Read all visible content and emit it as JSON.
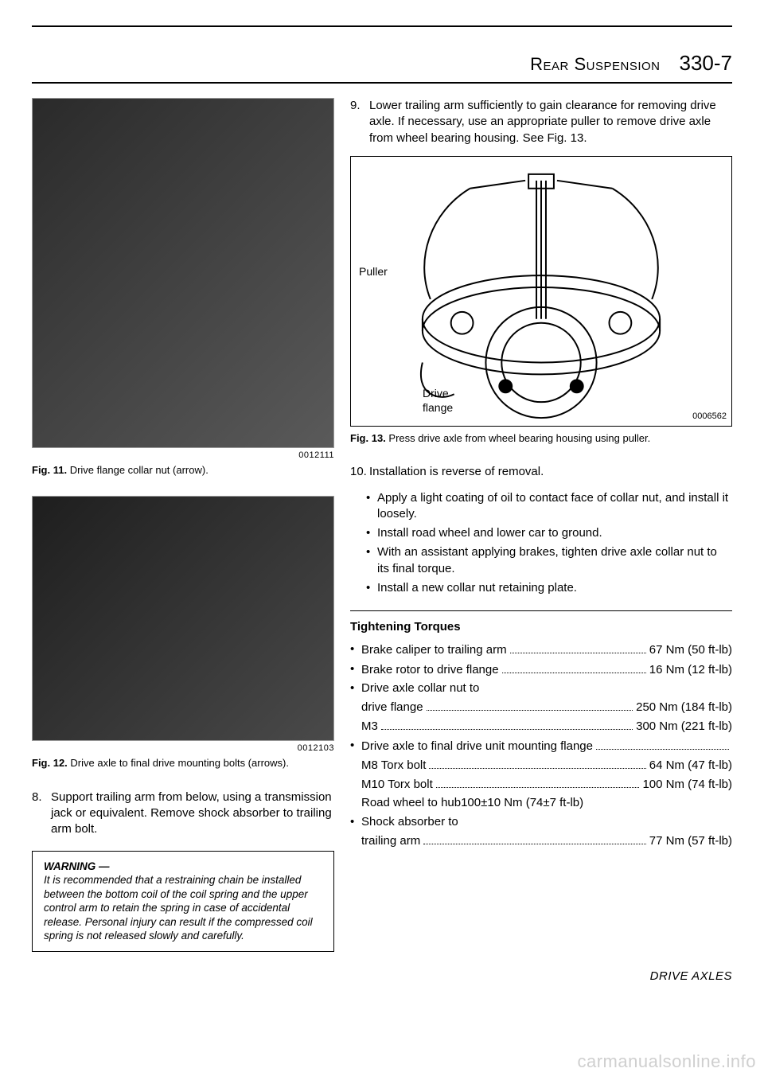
{
  "header": {
    "section_title": "Rear Suspension",
    "page_number": "330-7"
  },
  "left": {
    "fig11": {
      "id": "0012111",
      "caption_prefix": "Fig. 11.",
      "caption_text": " Drive flange collar nut (arrow)."
    },
    "fig12": {
      "id": "0012103",
      "caption_prefix": "Fig. 12.",
      "caption_text": " Drive axle to final drive mounting bolts (arrows)."
    },
    "step8": {
      "num": "8.",
      "text": "Support trailing arm from below, using a transmission jack or equivalent. Remove shock absorber to trailing arm bolt."
    },
    "warning": {
      "title": "WARNING —",
      "text": "It is recommended that a restraining chain be installed between the bottom coil of the coil spring and the upper control arm to retain the spring in case of accidental release. Personal injury can result if the compressed coil spring is not released slowly and carefully."
    }
  },
  "right": {
    "step9": {
      "num": "9.",
      "text": "Lower trailing arm sufficiently to gain clearance for removing drive axle. If necessary, use an appropriate puller to remove drive axle from wheel bearing housing. See Fig. 13."
    },
    "diagram": {
      "label_puller": "Puller",
      "label_drive": "Drive",
      "label_flange": "flange",
      "id": "0006562"
    },
    "fig13": {
      "caption_prefix": "Fig. 13.",
      "caption_text": " Press drive axle from wheel bearing housing using puller."
    },
    "step10": {
      "num": "10.",
      "text": "Installation is reverse of removal."
    },
    "bullets": [
      "Apply a light coating of oil to contact face of collar nut, and install it loosely.",
      "Install road wheel and lower car to ground.",
      "With an assistant applying brakes, tighten drive axle collar nut to its final torque.",
      "Install a new collar nut retaining plate."
    ],
    "torques": {
      "title": "Tightening Torques",
      "lines": [
        {
          "type": "dot",
          "label": "Brake caliper to trailing arm",
          "value": "67 Nm (50 ft-lb)"
        },
        {
          "type": "dot",
          "label": "Brake rotor to drive flange",
          "value": "16 Nm (12 ft-lb)"
        },
        {
          "type": "dot_only",
          "label": "Drive axle collar nut to"
        },
        {
          "type": "sub",
          "label": "drive flange",
          "value": "250 Nm (184 ft-lb)"
        },
        {
          "type": "sub",
          "label": "M3",
          "value": "300 Nm (221 ft-lb)"
        },
        {
          "type": "dot_trail",
          "label": "Drive axle to final drive unit mounting flange"
        },
        {
          "type": "sub",
          "label": "M8 Torx bolt",
          "value": "64 Nm (47 ft-lb)"
        },
        {
          "type": "sub",
          "label": "M10 Torx bolt",
          "value": "100 Nm (74 ft-lb)"
        },
        {
          "type": "sub_plain",
          "label": "Road wheel to hub100±10 Nm (74±7 ft-lb)"
        },
        {
          "type": "dot_only",
          "label": "Shock absorber to"
        },
        {
          "type": "sub",
          "label": "trailing arm",
          "value": "77 Nm (57 ft-lb)"
        }
      ]
    }
  },
  "footer": {
    "section": "DRIVE AXLES",
    "watermark": "carmanualsonline.info"
  },
  "colors": {
    "text": "#000000",
    "bg": "#ffffff",
    "photo_dark": "#333333",
    "watermark": "#cfcfcf"
  }
}
